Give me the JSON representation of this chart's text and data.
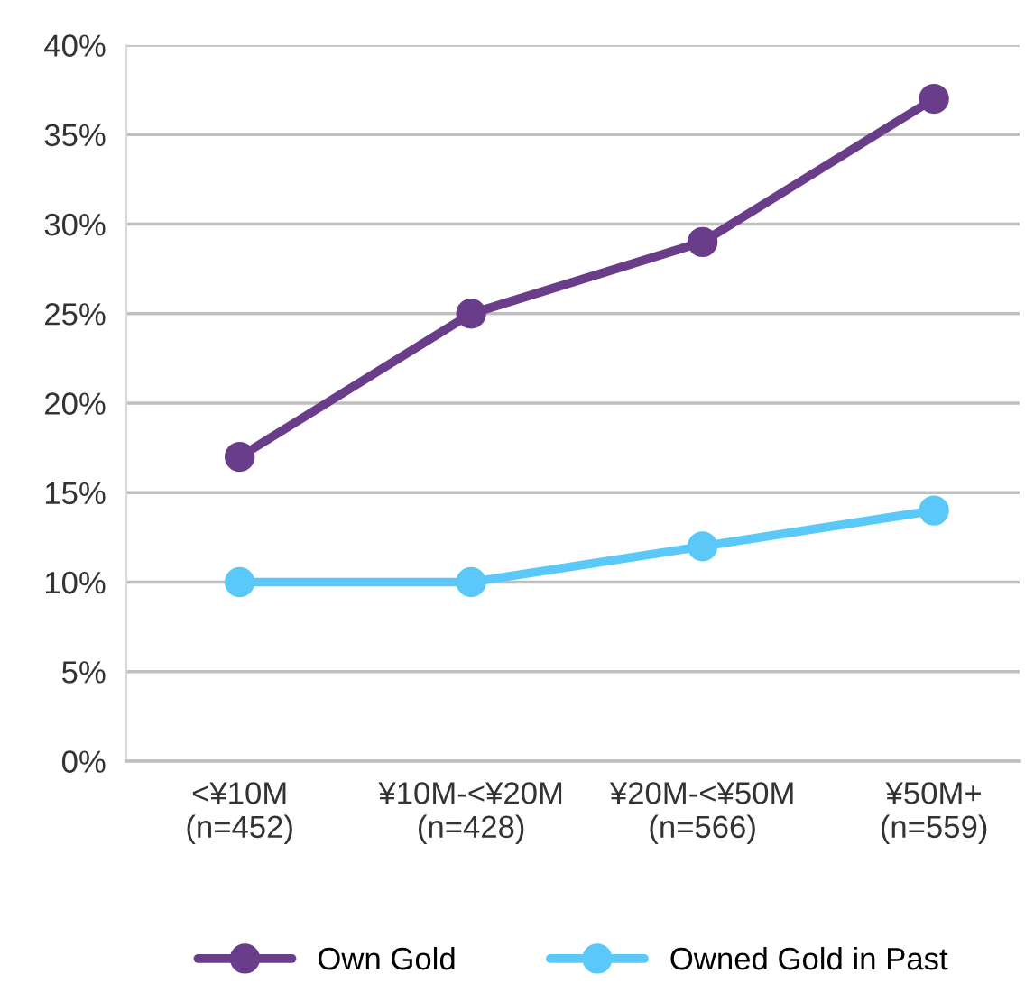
{
  "chart_data": {
    "type": "line",
    "categories": [
      "<¥10M\n(n=452)",
      "¥10M-<¥20M\n(n=428)",
      "¥20M-<¥50M\n(n=566)",
      "¥50M+\n(n=559)"
    ],
    "series": [
      {
        "name": "Own Gold",
        "color": "#6a3d8a",
        "values": [
          17,
          25,
          29,
          37
        ]
      },
      {
        "name": "Owned Gold in Past",
        "color": "#5ac8f8",
        "values": [
          10,
          10,
          12,
          14
        ]
      }
    ],
    "ylim": [
      0,
      40
    ],
    "yticks": [
      {
        "value": 0,
        "label": "0%"
      },
      {
        "value": 5,
        "label": "5%"
      },
      {
        "value": 10,
        "label": "10%"
      },
      {
        "value": 15,
        "label": "15%"
      },
      {
        "value": 20,
        "label": "20%"
      },
      {
        "value": 25,
        "label": "25%"
      },
      {
        "value": 30,
        "label": "30%"
      },
      {
        "value": 35,
        "label": "35%"
      },
      {
        "value": 40,
        "label": "40%"
      }
    ],
    "grid": "y",
    "legend": "bottom",
    "marker": "circle",
    "line_style": "solid"
  }
}
